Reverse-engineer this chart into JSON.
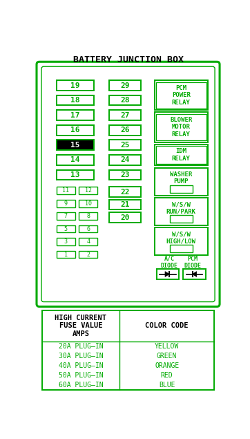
{
  "title": "BATTERY JUNCTION BOX",
  "title_fontsize": 9.5,
  "green": "#00aa00",
  "black": "#000000",
  "white": "#ffffff",
  "bg": "#ffffff",
  "left_col_fuses": [
    {
      "label": "19",
      "black_bg": false
    },
    {
      "label": "18",
      "black_bg": false
    },
    {
      "label": "17",
      "black_bg": false
    },
    {
      "label": "16",
      "black_bg": false
    },
    {
      "label": "15",
      "black_bg": true
    },
    {
      "label": "14",
      "black_bg": false
    },
    {
      "label": "13",
      "black_bg": false
    }
  ],
  "small_left_pairs": [
    [
      {
        "label": "11"
      },
      {
        "label": "12"
      }
    ],
    [
      {
        "label": "9"
      },
      {
        "label": "10"
      }
    ],
    [
      {
        "label": "7"
      },
      {
        "label": "8"
      }
    ],
    [
      {
        "label": "5"
      },
      {
        "label": "6"
      }
    ],
    [
      {
        "label": "3"
      },
      {
        "label": "4"
      }
    ],
    [
      {
        "label": "1"
      },
      {
        "label": "2"
      }
    ]
  ],
  "mid_col_fuses": [
    "29",
    "28",
    "27",
    "26",
    "25",
    "24",
    "23",
    "22",
    "21",
    "20"
  ],
  "relay_defs": [
    {
      "label": "PCM\nPOWER\nRELAY",
      "double": true,
      "has_inner": false
    },
    {
      "label": "BLOWER\nMOTOR\nRELAY",
      "double": true,
      "has_inner": false
    },
    {
      "label": "IDM\nRELAY",
      "double": true,
      "has_inner": false
    },
    {
      "label": "WASHER\nPUMP",
      "double": false,
      "has_inner": true
    },
    {
      "label": "W/S/W\nRUN/PARK",
      "double": false,
      "has_inner": true
    },
    {
      "label": "W/S/W\nHIGH/LOW",
      "double": false,
      "has_inner": true
    }
  ],
  "table_header_left": "HIGH CURRENT\nFUSE VALUE\nAMPS",
  "table_header_right": "COLOR CODE",
  "table_rows_left": [
    "20A PLUG–IN",
    "30A PLUG–IN",
    "40A PLUG–IN",
    "50A PLUG–IN",
    "60A PLUG–IN"
  ],
  "table_rows_right": [
    "YELLOW",
    "GREEN",
    "ORANGE",
    "RED",
    "BLUE"
  ]
}
